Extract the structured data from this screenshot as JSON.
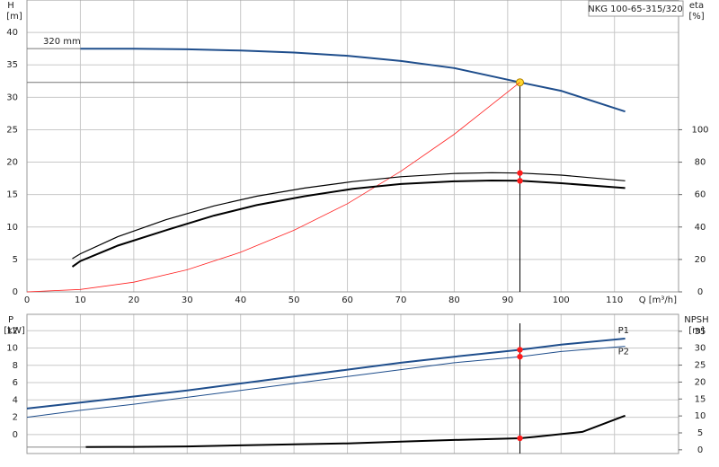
{
  "chart_data": [
    {
      "type": "line",
      "title": "NKG 100-65-315/320",
      "ylabel": "H",
      "yunit": "[m]",
      "y2label": "eta",
      "y2unit": "[%]",
      "xlabel": "Q [m³/h]",
      "xlim": [
        0,
        122
      ],
      "xticks": [
        0,
        10,
        20,
        30,
        40,
        50,
        60,
        70,
        80,
        90,
        100,
        110
      ],
      "ylim": [
        0,
        45
      ],
      "yticks": [
        0,
        5,
        10,
        15,
        20,
        25,
        30,
        35,
        40
      ],
      "y2lim": [
        0,
        180
      ],
      "y2ticks": [
        0,
        20,
        40,
        60,
        80,
        100
      ],
      "grid": true,
      "operating_point": {
        "x": 92.3,
        "y": 32.3
      },
      "series": [
        {
          "name": "320 mm",
          "color": "#1f4e8c",
          "linewidth": 2,
          "duty": "yellow",
          "x": [
            10,
            20,
            30,
            40,
            50,
            60,
            70,
            80,
            92.3,
            100,
            112
          ],
          "values": [
            37.5,
            37.5,
            37.4,
            37.2,
            36.9,
            36.4,
            35.6,
            34.5,
            32.3,
            31.0,
            27.8
          ]
        },
        {
          "color": "#ff2020",
          "linewidth": 0.8,
          "x": [
            0,
            10,
            20,
            30,
            40,
            50,
            60,
            70,
            80,
            92.3
          ],
          "values": [
            0,
            0.38,
            1.5,
            3.4,
            6.1,
            9.5,
            13.6,
            18.6,
            24.3,
            32.3
          ]
        },
        {
          "color": "#000000",
          "linewidth": 1.2,
          "axis": "y2",
          "duty": "red",
          "x": [
            8.5,
            10,
            17,
            26,
            35,
            43,
            52,
            61,
            70,
            80,
            87,
            92.3,
            100,
            112
          ],
          "values": [
            20.5,
            23.5,
            34,
            44.5,
            53,
            59,
            64,
            68,
            71,
            73,
            73.5,
            73.3,
            72,
            68.5
          ]
        },
        {
          "color": "#000000",
          "linewidth": 2,
          "axis": "y2",
          "duty": "red",
          "x": [
            8.5,
            10,
            17,
            26,
            35,
            43,
            52,
            61,
            70,
            80,
            87,
            92.3,
            100,
            112
          ],
          "values": [
            15.5,
            19,
            28.5,
            38,
            47,
            53.5,
            59,
            63.5,
            66.5,
            68.2,
            68.7,
            68.5,
            67,
            64
          ]
        }
      ]
    },
    {
      "type": "line",
      "ylabel": "P",
      "yunit": "[kW]",
      "y2label": "NPSH",
      "y2unit": "[m]",
      "xlim": [
        0,
        122
      ],
      "xticks": [
        0,
        10,
        20,
        30,
        40,
        50,
        60,
        70,
        80,
        90,
        100,
        110
      ],
      "ylim": [
        -2.2,
        13.9
      ],
      "yticks": [
        0,
        2,
        4,
        6,
        8,
        10,
        12
      ],
      "y2lim": [
        -1.1,
        40
      ],
      "y2ticks": [
        0,
        5,
        10,
        15,
        20,
        25,
        30,
        35
      ],
      "grid": true,
      "duty_x": 92.3,
      "series": [
        {
          "name": "P1",
          "color": "#1f4e8c",
          "linewidth": 2,
          "duty": "red",
          "x": [
            0,
            10,
            20,
            30,
            40,
            50,
            60,
            70,
            80,
            92.3,
            100,
            112
          ],
          "values": [
            3.0,
            3.7,
            4.4,
            5.1,
            5.9,
            6.7,
            7.5,
            8.3,
            9.0,
            9.8,
            10.4,
            11.1
          ]
        },
        {
          "name": "P2",
          "color": "#1f4e8c",
          "linewidth": 1,
          "duty": "red",
          "x": [
            0,
            10,
            20,
            30,
            40,
            50,
            60,
            70,
            80,
            92.3,
            100,
            112
          ],
          "values": [
            2.0,
            2.8,
            3.5,
            4.3,
            5.1,
            5.9,
            6.7,
            7.5,
            8.3,
            9.0,
            9.6,
            10.2
          ]
        },
        {
          "color": "#000000",
          "linewidth": 2,
          "axis": "y2",
          "duty": "red",
          "x": [
            11,
            20,
            30,
            40,
            50,
            60,
            70,
            80,
            92.3,
            95,
            104,
            112
          ],
          "values": [
            0.8,
            0.85,
            1.0,
            1.3,
            1.6,
            1.9,
            2.4,
            2.9,
            3.4,
            3.8,
            5.3,
            10.1
          ]
        }
      ]
    }
  ]
}
